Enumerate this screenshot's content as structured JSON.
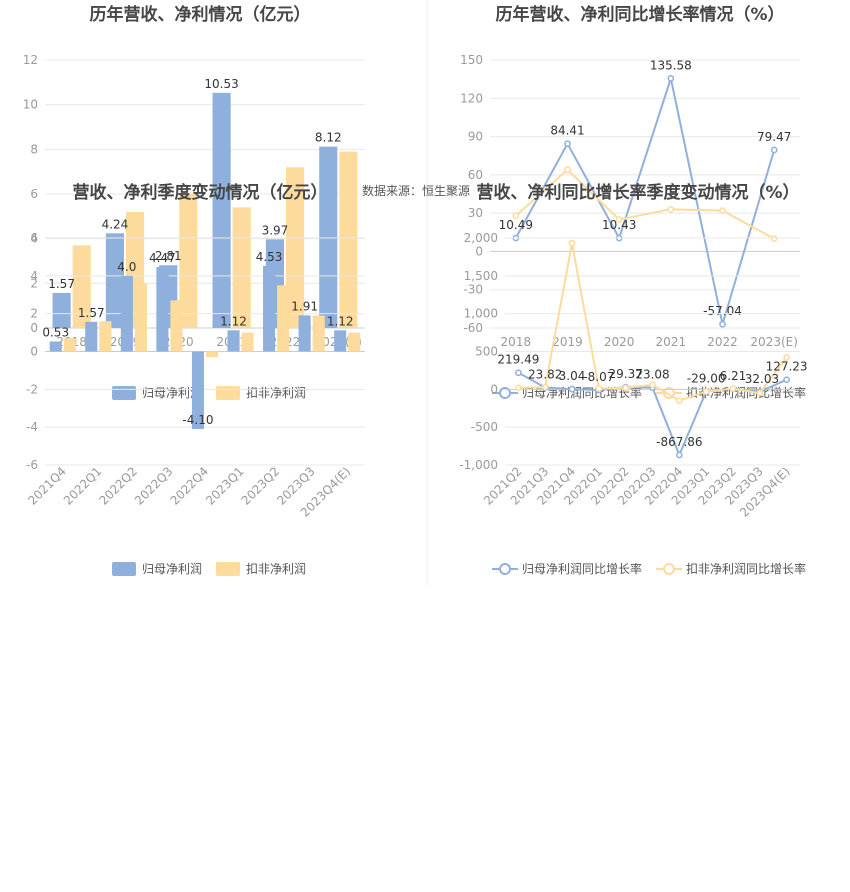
{
  "source_note": "数据来源：恒生聚源",
  "colors": {
    "blue": "#8fb0dc",
    "orange": "#fddb9c",
    "grid": "#e8e8e8",
    "axis": "#cccccc"
  },
  "chart_data": [
    {
      "id": "annual-profit",
      "type": "bar",
      "title": "历年营收、净利情况（亿元）",
      "categories": [
        "2018",
        "2019",
        "2020",
        "2021",
        "2022",
        "2023(E)"
      ],
      "series": [
        {
          "name": "归母净利润",
          "values": [
            1.57,
            4.24,
            2.81,
            10.53,
            3.97,
            8.12
          ]
        },
        {
          "name": "扣非净利润",
          "values": [
            3.7,
            5.2,
            6.0,
            5.4,
            7.2,
            7.9
          ]
        }
      ],
      "data_labels": [
        "1.57",
        "4.24",
        "2.81",
        "10.53",
        "3.97",
        "8.12"
      ],
      "ylim": [
        0,
        12
      ],
      "yticks": [
        0,
        2,
        4,
        6,
        8,
        10,
        12
      ]
    },
    {
      "id": "annual-growth",
      "type": "line",
      "title": "历年营收、净利同比增长率情况（%）",
      "categories": [
        "2018",
        "2019",
        "2020",
        "2021",
        "2022",
        "2023(E)"
      ],
      "series": [
        {
          "name": "归母净利润同比增长率",
          "values": [
            10.49,
            84.41,
            10.43,
            135.58,
            -57.04,
            79.47
          ]
        },
        {
          "name": "扣非净利润同比增长率",
          "values": [
            28,
            64,
            25,
            33,
            32,
            10
          ]
        }
      ],
      "data_labels": [
        "10.49",
        "84.41",
        "10.43",
        "135.58",
        "-57.04",
        "79.47"
      ],
      "ylim": [
        -60,
        150
      ],
      "yticks": [
        -60,
        -30,
        0,
        30,
        60,
        90,
        120,
        150
      ]
    },
    {
      "id": "quarterly-profit",
      "type": "bar",
      "title": "营收、净利季度变动情况（亿元）",
      "categories": [
        "2021Q4",
        "2022Q1",
        "2022Q2",
        "2022Q3",
        "2022Q4",
        "2023Q1",
        "2023Q2",
        "2023Q3",
        "2023Q4(E)"
      ],
      "series": [
        {
          "name": "归母净利润",
          "values": [
            0.53,
            1.57,
            4.0,
            4.47,
            -4.1,
            1.12,
            4.53,
            1.91,
            1.12
          ]
        },
        {
          "name": "扣非净利润",
          "values": [
            0.7,
            1.6,
            3.6,
            2.7,
            -0.3,
            1.0,
            3.5,
            1.9,
            1.0
          ]
        }
      ],
      "data_labels": [
        "0.53",
        "1.57",
        "4.0",
        "4.47",
        "-4.10",
        "1.12",
        "4.53",
        "1.91",
        "1.12"
      ],
      "ylim": [
        -6,
        6
      ],
      "yticks": [
        -6,
        -4,
        -2,
        0,
        2,
        4,
        6
      ]
    },
    {
      "id": "quarterly-growth",
      "type": "line",
      "title": "营收、净利同比增长率季度变动情况（%）",
      "categories": [
        "2021Q2",
        "2021Q3",
        "2021Q4",
        "2022Q1",
        "2022Q2",
        "2022Q3",
        "2022Q4",
        "2023Q1",
        "2023Q2",
        "2023Q3",
        "2023Q4(E)"
      ],
      "series": [
        {
          "name": "归母净利润同比增长率",
          "values": [
            219.49,
            23.82,
            3.04,
            -8.07,
            29.37,
            23.08,
            -867.86,
            -29.0,
            6.21,
            -32.03,
            127.23
          ]
        },
        {
          "name": "扣非净利润同比增长率",
          "values": [
            20,
            30,
            1930,
            10,
            20,
            60,
            -150,
            -30,
            10,
            -50,
            420
          ]
        }
      ],
      "data_labels": [
        "219.49",
        "23.82",
        "3.04",
        "-8.07",
        "29.37",
        "23.08",
        "-867.86",
        "-29.00",
        "6.21",
        "-32.03",
        "127.23"
      ],
      "ylim": [
        -1000,
        2000
      ],
      "yticks": [
        -1000,
        -500,
        0,
        500,
        1000,
        1500,
        2000
      ]
    }
  ]
}
